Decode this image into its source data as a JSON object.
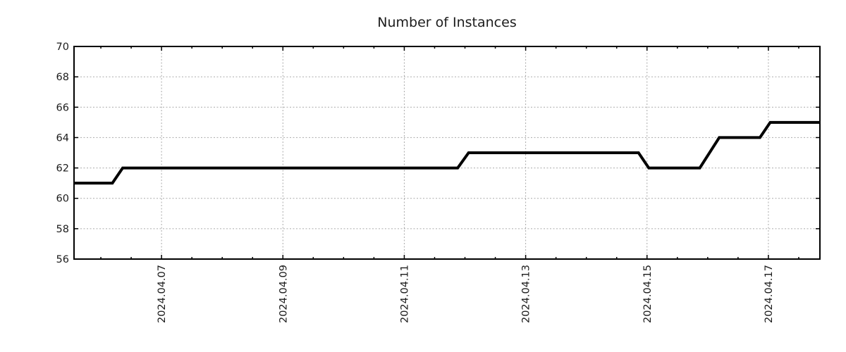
{
  "chart_data": {
    "type": "line",
    "title": "Number of Instances",
    "xlabel": "",
    "ylabel": "",
    "line_style": "step-like monitoring series, solid black, ~4px",
    "ylim": [
      56,
      70
    ],
    "y_ticks": [
      56,
      58,
      60,
      62,
      64,
      66,
      68,
      70
    ],
    "xlim_days_april_2024": [
      5.558,
      17.849
    ],
    "x_major_ticks": [
      {
        "day": 7,
        "label": "2024.04.07"
      },
      {
        "day": 9,
        "label": "2024.04.09"
      },
      {
        "day": 11,
        "label": "2024.04.11"
      },
      {
        "day": 13,
        "label": "2024.04.13"
      },
      {
        "day": 15,
        "label": "2024.04.15"
      },
      {
        "day": 17,
        "label": "2024.04.17"
      }
    ],
    "x_minor_tick_step_days": 0.5,
    "x_minor_tick_range_days": [
      6.0,
      17.5
    ],
    "grid": "dotted gridlines at major ticks only, mirrored inward ticks on all four borders",
    "legend": "none",
    "series": [
      {
        "name": "instances",
        "color": "#000000",
        "points_day_value": [
          [
            5.558,
            61
          ],
          [
            6.19,
            61
          ],
          [
            6.36,
            62
          ],
          [
            11.88,
            62
          ],
          [
            12.06,
            63
          ],
          [
            14.86,
            63
          ],
          [
            15.03,
            62
          ],
          [
            15.87,
            62
          ],
          [
            16.19,
            64
          ],
          [
            16.86,
            64
          ],
          [
            17.03,
            65
          ],
          [
            17.849,
            65
          ]
        ]
      }
    ]
  },
  "colors": {
    "background": "#ffffff",
    "line": "#000000",
    "grid": "#aaaaaa",
    "axis": "#000000",
    "text": "#1c1c1c"
  }
}
